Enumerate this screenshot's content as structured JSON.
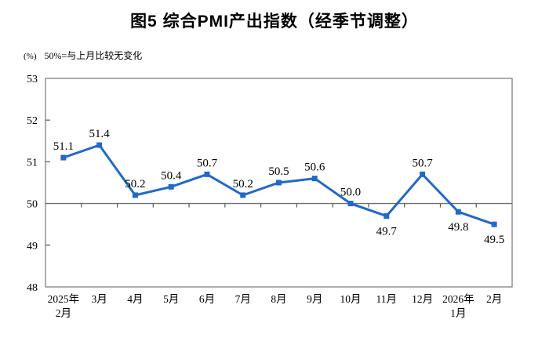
{
  "title": "图5 综合PMI产出指数（经季节调整）",
  "subtitle": {
    "unit": "(%)",
    "note": "50%=与上月比较无变化"
  },
  "chart_data": {
    "type": "line",
    "title": "图5 综合PMI产出指数（经季节调整）",
    "unit_label": "(%)",
    "note": "50%=与上月比较无变化",
    "categories": [
      [
        "2025年",
        "2月"
      ],
      [
        "3月"
      ],
      [
        "4月"
      ],
      [
        "5月"
      ],
      [
        "6月"
      ],
      [
        "7月"
      ],
      [
        "8月"
      ],
      [
        "9月"
      ],
      [
        "10月"
      ],
      [
        "11月"
      ],
      [
        "12月"
      ],
      [
        "2026年",
        "1月"
      ],
      [
        "2月"
      ]
    ],
    "values": [
      51.1,
      51.4,
      50.2,
      50.4,
      50.7,
      50.2,
      50.5,
      50.6,
      50.0,
      49.7,
      50.7,
      49.8,
      49.5
    ],
    "label_position": [
      "above",
      "above",
      "above",
      "above",
      "above",
      "above",
      "above",
      "above",
      "above",
      "below",
      "above",
      "below",
      "below"
    ],
    "ylim": [
      48,
      53
    ],
    "yticks": [
      48,
      49,
      50,
      51,
      52,
      53
    ],
    "reference_line": 50,
    "grid": false,
    "legend": false,
    "xlabel": "",
    "ylabel": "(%)",
    "colors": {
      "line": "#2169C8",
      "marker": "#2169C8",
      "border": "#808080",
      "reference": "#6E6E6E",
      "tick": "#595959",
      "text": "#000000"
    }
  }
}
